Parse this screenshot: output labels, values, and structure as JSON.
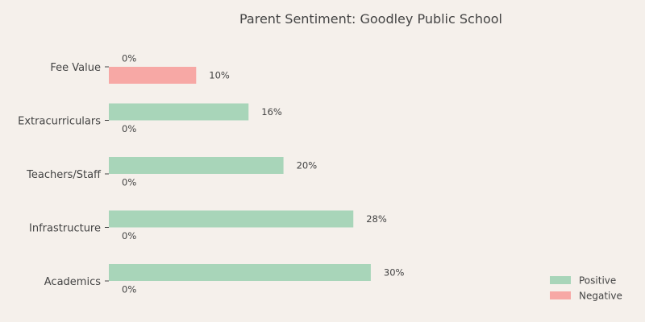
{
  "chart_data": {
    "type": "bar",
    "orientation": "horizontal",
    "title": "Parent Sentiment: Goodley Public School",
    "categories": [
      "Fee Value",
      "Extracurriculars",
      "Teachers/Staff",
      "Infrastructure",
      "Academics"
    ],
    "series": [
      {
        "name": "Positive",
        "color": "#a8d5b9",
        "values": [
          0,
          16,
          20,
          28,
          30
        ]
      },
      {
        "name": "Negative",
        "color": "#f7a8a5",
        "values": [
          10,
          0,
          0,
          0,
          0
        ]
      }
    ],
    "value_suffix": "%",
    "xlim": [
      0,
      34
    ],
    "legend_position": "bottom-right",
    "grid": false
  }
}
